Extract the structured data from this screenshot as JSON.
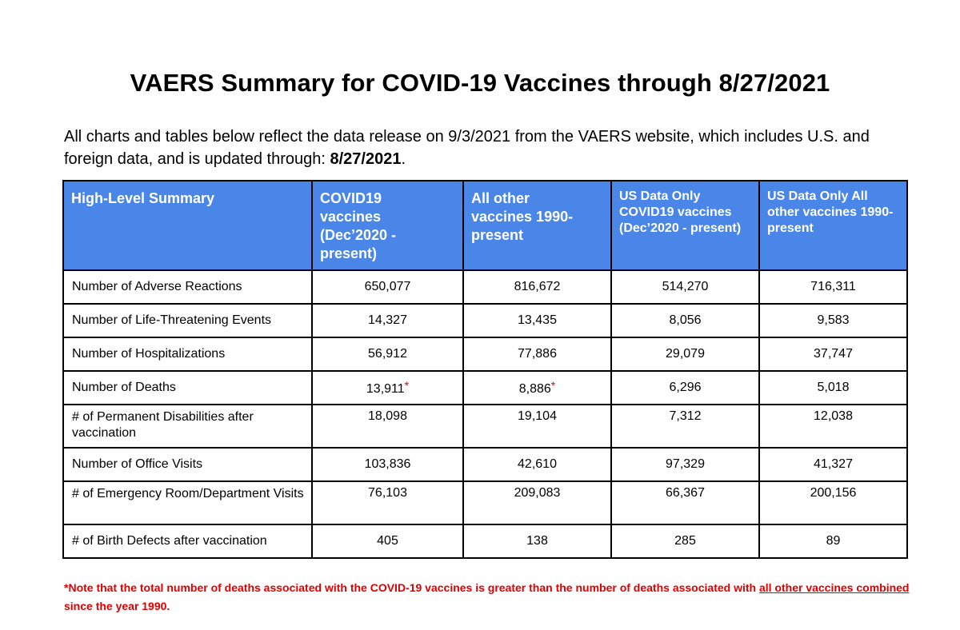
{
  "title": "VAERS Summary for COVID-19 Vaccines through 8/27/2021",
  "intro": {
    "text": "All charts and tables below reflect the data release on 9/3/2021 from the VAERS website, which includes U.S. and foreign data, and is updated through: ",
    "date": "8/27/2021",
    "end": "."
  },
  "table": {
    "headers": [
      "High-Level Summary",
      "COVID19 vaccines (Dec’2020 - present)",
      "All other vaccines 1990-present",
      "US Data Only COVID19 vaccines (Dec’2020 - present)",
      "US Data Only All other vaccines 1990-present"
    ],
    "rows": [
      {
        "label": "Number of Adverse Reactions",
        "values": [
          "650,077",
          "816,672",
          "514,270",
          "716,311"
        ]
      },
      {
        "label": "Number of Life-Threatening Events",
        "values": [
          "14,327",
          "13,435",
          "8,056",
          "9,583"
        ]
      },
      {
        "label": "Number of Hospitalizations",
        "values": [
          "56,912",
          "77,886",
          "29,079",
          "37,747"
        ]
      },
      {
        "label": "Number of Deaths",
        "values": [
          "13,911",
          "8,886",
          "6,296",
          "5,018"
        ]
      },
      {
        "label": "# of Permanent Disabilities after vaccination",
        "values": [
          "18,098",
          "19,104",
          "7,312",
          "12,038"
        ]
      },
      {
        "label": "Number of Office Visits",
        "values": [
          "103,836",
          "42,610",
          "97,329",
          "41,327"
        ]
      },
      {
        "label": "# of Emergency Room/Department Visits",
        "values": [
          "76,103",
          "209,083",
          "66,367",
          "200,156"
        ]
      },
      {
        "label": "# of Birth Defects after vaccination",
        "values": [
          "405",
          "138",
          "285",
          "89"
        ]
      }
    ],
    "asterisk": "*"
  },
  "note": {
    "star": "*",
    "text": "Note that the total number of deaths associated with the COVID-19 vaccines is greater than the number of deaths associated with ",
    "underlined": "all other vaccines combined",
    "end": " since the year 1990."
  },
  "colors": {
    "header_bg": "#4a86e8",
    "note_red": "#e00000"
  }
}
